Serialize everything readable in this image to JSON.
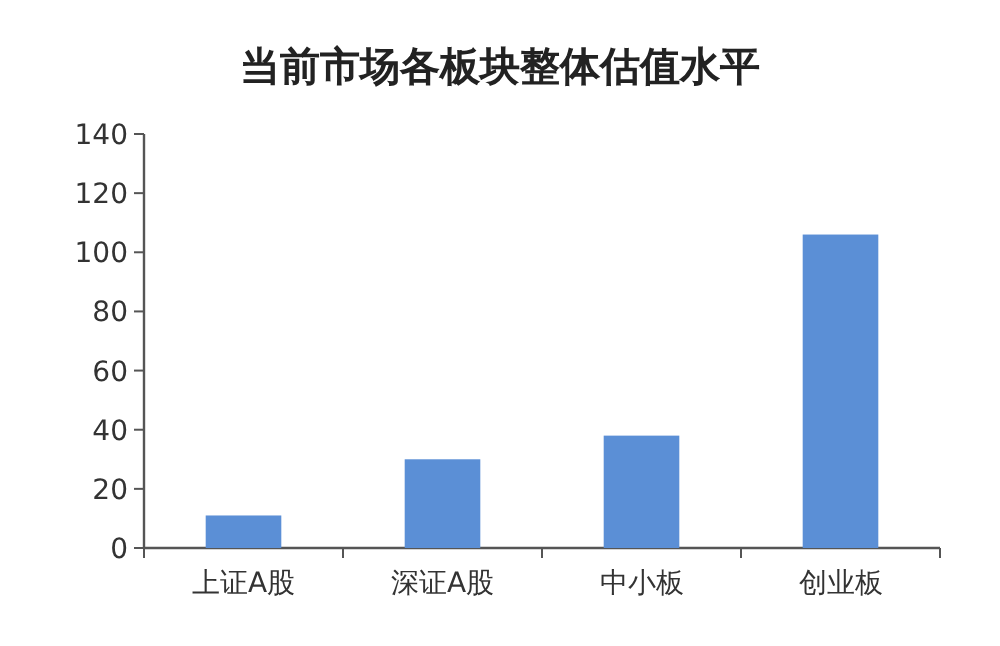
{
  "chart_data": {
    "type": "bar",
    "title": "当前市场各板块整体估值水平",
    "categories": [
      "上证A股",
      "深证A股",
      "中小板",
      "创业板"
    ],
    "values": [
      11,
      30,
      38,
      106
    ],
    "color": "#5b8fd6",
    "ylim": [
      0,
      140
    ],
    "yticks": [
      0,
      20,
      40,
      60,
      80,
      100,
      120,
      140
    ]
  }
}
